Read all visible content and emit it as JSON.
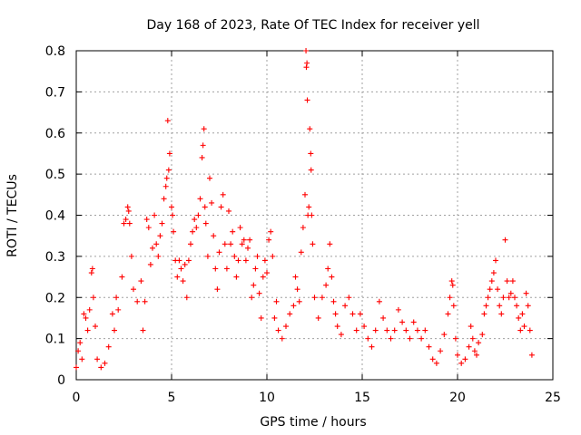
{
  "chart_data": {
    "type": "scatter",
    "title": "Day 168 of 2023, Rate Of TEC Index for receiver yell",
    "xlabel": "GPS time / hours",
    "ylabel": "ROTI / TECUs",
    "xlim": [
      0,
      25
    ],
    "ylim": [
      0,
      0.8
    ],
    "xticks": [
      0,
      5,
      10,
      15,
      20,
      25
    ],
    "xtick_labels": [
      "0",
      "5",
      "10",
      "15",
      "20",
      "25"
    ],
    "yticks": [
      0,
      0.1,
      0.2,
      0.3,
      0.4,
      0.5,
      0.6,
      0.7,
      0.8
    ],
    "ytick_labels": [
      "0",
      "0.1",
      "0.2",
      "0.3",
      "0.4",
      "0.5",
      "0.6",
      "0.7",
      "0.8"
    ],
    "grid": true,
    "marker": "+",
    "series": [
      {
        "name": "ROTI",
        "color": "#ff0000",
        "points": [
          [
            0.0,
            0.03
          ],
          [
            0.1,
            0.07
          ],
          [
            0.2,
            0.09
          ],
          [
            0.3,
            0.05
          ],
          [
            0.4,
            0.16
          ],
          [
            0.5,
            0.15
          ],
          [
            0.6,
            0.12
          ],
          [
            0.7,
            0.17
          ],
          [
            0.8,
            0.26
          ],
          [
            0.85,
            0.27
          ],
          [
            0.9,
            0.2
          ],
          [
            1.0,
            0.13
          ],
          [
            1.1,
            0.05
          ],
          [
            1.3,
            0.03
          ],
          [
            1.5,
            0.04
          ],
          [
            1.7,
            0.08
          ],
          [
            1.9,
            0.16
          ],
          [
            2.0,
            0.12
          ],
          [
            2.1,
            0.2
          ],
          [
            2.2,
            0.17
          ],
          [
            2.4,
            0.25
          ],
          [
            2.5,
            0.38
          ],
          [
            2.6,
            0.39
          ],
          [
            2.7,
            0.42
          ],
          [
            2.75,
            0.41
          ],
          [
            2.8,
            0.38
          ],
          [
            2.9,
            0.3
          ],
          [
            3.0,
            0.22
          ],
          [
            3.2,
            0.19
          ],
          [
            3.4,
            0.24
          ],
          [
            3.5,
            0.12
          ],
          [
            3.6,
            0.19
          ],
          [
            3.7,
            0.39
          ],
          [
            3.8,
            0.37
          ],
          [
            3.9,
            0.28
          ],
          [
            4.0,
            0.32
          ],
          [
            4.1,
            0.4
          ],
          [
            4.2,
            0.33
          ],
          [
            4.3,
            0.3
          ],
          [
            4.4,
            0.35
          ],
          [
            4.5,
            0.38
          ],
          [
            4.6,
            0.44
          ],
          [
            4.7,
            0.47
          ],
          [
            4.75,
            0.49
          ],
          [
            4.8,
            0.63
          ],
          [
            4.85,
            0.51
          ],
          [
            4.9,
            0.55
          ],
          [
            5.0,
            0.42
          ],
          [
            5.05,
            0.4
          ],
          [
            5.1,
            0.36
          ],
          [
            5.2,
            0.29
          ],
          [
            5.3,
            0.25
          ],
          [
            5.4,
            0.29
          ],
          [
            5.5,
            0.27
          ],
          [
            5.6,
            0.24
          ],
          [
            5.7,
            0.28
          ],
          [
            5.8,
            0.2
          ],
          [
            5.9,
            0.29
          ],
          [
            6.0,
            0.33
          ],
          [
            6.1,
            0.36
          ],
          [
            6.2,
            0.39
          ],
          [
            6.3,
            0.37
          ],
          [
            6.4,
            0.4
          ],
          [
            6.5,
            0.44
          ],
          [
            6.6,
            0.54
          ],
          [
            6.65,
            0.57
          ],
          [
            6.7,
            0.61
          ],
          [
            6.75,
            0.42
          ],
          [
            6.8,
            0.38
          ],
          [
            6.9,
            0.3
          ],
          [
            7.0,
            0.49
          ],
          [
            7.1,
            0.43
          ],
          [
            7.2,
            0.35
          ],
          [
            7.3,
            0.27
          ],
          [
            7.4,
            0.22
          ],
          [
            7.5,
            0.31
          ],
          [
            7.6,
            0.42
          ],
          [
            7.7,
            0.45
          ],
          [
            7.8,
            0.33
          ],
          [
            7.9,
            0.27
          ],
          [
            8.0,
            0.41
          ],
          [
            8.1,
            0.33
          ],
          [
            8.2,
            0.36
          ],
          [
            8.3,
            0.3
          ],
          [
            8.4,
            0.25
          ],
          [
            8.5,
            0.29
          ],
          [
            8.6,
            0.37
          ],
          [
            8.7,
            0.33
          ],
          [
            8.8,
            0.34
          ],
          [
            8.9,
            0.29
          ],
          [
            9.0,
            0.32
          ],
          [
            9.1,
            0.34
          ],
          [
            9.2,
            0.2
          ],
          [
            9.3,
            0.23
          ],
          [
            9.4,
            0.27
          ],
          [
            9.5,
            0.3
          ],
          [
            9.6,
            0.21
          ],
          [
            9.7,
            0.15
          ],
          [
            9.8,
            0.25
          ],
          [
            9.9,
            0.29
          ],
          [
            10.0,
            0.26
          ],
          [
            10.1,
            0.34
          ],
          [
            10.2,
            0.36
          ],
          [
            10.3,
            0.3
          ],
          [
            10.4,
            0.15
          ],
          [
            10.5,
            0.19
          ],
          [
            10.6,
            0.12
          ],
          [
            10.8,
            0.1
          ],
          [
            11.0,
            0.13
          ],
          [
            11.2,
            0.16
          ],
          [
            11.4,
            0.18
          ],
          [
            11.5,
            0.25
          ],
          [
            11.6,
            0.22
          ],
          [
            11.7,
            0.19
          ],
          [
            11.8,
            0.31
          ],
          [
            11.9,
            0.37
          ],
          [
            12.0,
            0.45
          ],
          [
            12.05,
            0.8
          ],
          [
            12.07,
            0.76
          ],
          [
            12.1,
            0.77
          ],
          [
            12.12,
            0.68
          ],
          [
            12.15,
            0.4
          ],
          [
            12.2,
            0.42
          ],
          [
            12.25,
            0.61
          ],
          [
            12.3,
            0.55
          ],
          [
            12.32,
            0.51
          ],
          [
            12.35,
            0.4
          ],
          [
            12.4,
            0.33
          ],
          [
            12.5,
            0.2
          ],
          [
            12.7,
            0.15
          ],
          [
            12.9,
            0.2
          ],
          [
            13.1,
            0.23
          ],
          [
            13.2,
            0.27
          ],
          [
            13.3,
            0.33
          ],
          [
            13.4,
            0.25
          ],
          [
            13.5,
            0.19
          ],
          [
            13.6,
            0.16
          ],
          [
            13.7,
            0.13
          ],
          [
            13.9,
            0.11
          ],
          [
            14.1,
            0.18
          ],
          [
            14.3,
            0.2
          ],
          [
            14.5,
            0.16
          ],
          [
            14.7,
            0.12
          ],
          [
            14.9,
            0.16
          ],
          [
            15.1,
            0.13
          ],
          [
            15.3,
            0.1
          ],
          [
            15.5,
            0.08
          ],
          [
            15.7,
            0.12
          ],
          [
            15.9,
            0.19
          ],
          [
            16.1,
            0.15
          ],
          [
            16.3,
            0.12
          ],
          [
            16.5,
            0.1
          ],
          [
            16.7,
            0.12
          ],
          [
            16.9,
            0.17
          ],
          [
            17.1,
            0.14
          ],
          [
            17.3,
            0.12
          ],
          [
            17.5,
            0.1
          ],
          [
            17.7,
            0.14
          ],
          [
            17.9,
            0.12
          ],
          [
            18.1,
            0.1
          ],
          [
            18.3,
            0.12
          ],
          [
            18.5,
            0.08
          ],
          [
            18.7,
            0.05
          ],
          [
            18.9,
            0.04
          ],
          [
            19.1,
            0.07
          ],
          [
            19.3,
            0.11
          ],
          [
            19.5,
            0.16
          ],
          [
            19.6,
            0.2
          ],
          [
            19.7,
            0.24
          ],
          [
            19.75,
            0.23
          ],
          [
            19.8,
            0.18
          ],
          [
            19.9,
            0.1
          ],
          [
            20.0,
            0.06
          ],
          [
            20.2,
            0.04
          ],
          [
            20.4,
            0.05
          ],
          [
            20.6,
            0.08
          ],
          [
            20.7,
            0.13
          ],
          [
            20.8,
            0.1
          ],
          [
            20.9,
            0.07
          ],
          [
            21.0,
            0.06
          ],
          [
            21.1,
            0.09
          ],
          [
            21.3,
            0.11
          ],
          [
            21.4,
            0.16
          ],
          [
            21.5,
            0.18
          ],
          [
            21.6,
            0.2
          ],
          [
            21.7,
            0.22
          ],
          [
            21.8,
            0.24
          ],
          [
            21.9,
            0.26
          ],
          [
            22.0,
            0.29
          ],
          [
            22.1,
            0.22
          ],
          [
            22.2,
            0.18
          ],
          [
            22.3,
            0.16
          ],
          [
            22.4,
            0.2
          ],
          [
            22.5,
            0.34
          ],
          [
            22.6,
            0.24
          ],
          [
            22.7,
            0.2
          ],
          [
            22.8,
            0.21
          ],
          [
            22.9,
            0.24
          ],
          [
            23.0,
            0.2
          ],
          [
            23.1,
            0.18
          ],
          [
            23.2,
            0.15
          ],
          [
            23.3,
            0.12
          ],
          [
            23.4,
            0.16
          ],
          [
            23.5,
            0.13
          ],
          [
            23.6,
            0.21
          ],
          [
            23.7,
            0.18
          ],
          [
            23.8,
            0.12
          ],
          [
            23.9,
            0.06
          ]
        ]
      }
    ]
  }
}
